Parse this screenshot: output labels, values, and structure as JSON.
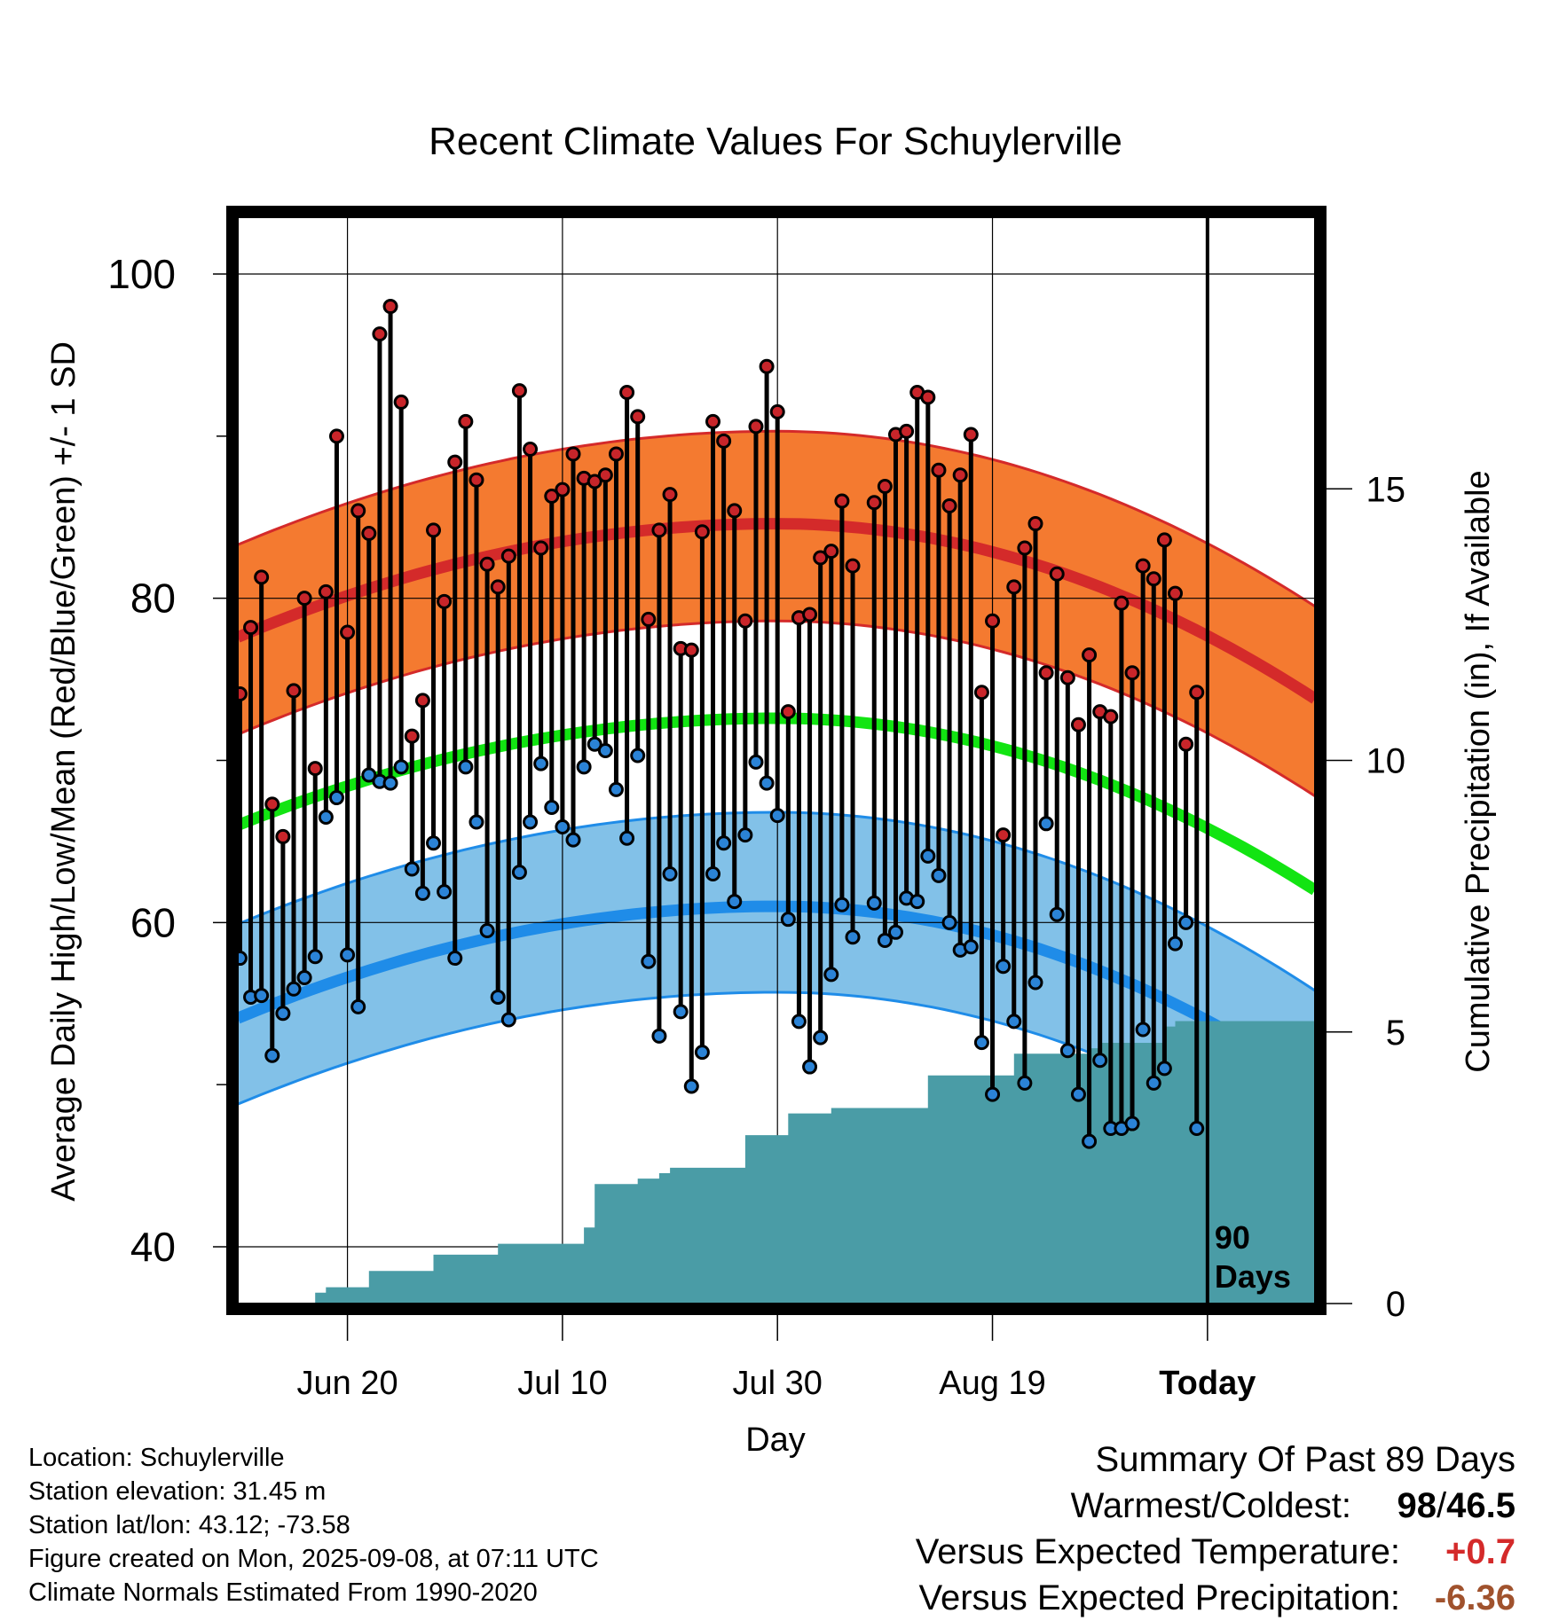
{
  "chart_data": {
    "type": "line",
    "title": "Recent Climate Values For Schuylerville",
    "xlabel": "Day",
    "ylabel_left": "Average Daily High/Low/Mean (Red/Blue/Green) +/- 1 SD",
    "ylabel_right": "Cumulative Precipitation (in), If Available",
    "ylim": [
      36.5,
      103.5
    ],
    "yticks": [
      40,
      60,
      80,
      100
    ],
    "y2lim": [
      0,
      20.0
    ],
    "y2ticks": [
      0,
      5,
      10,
      15
    ],
    "xlim_day_index": [
      -0.2,
      100
    ],
    "xticks": [
      {
        "day": 10,
        "label": "Jun 20"
      },
      {
        "day": 30,
        "label": "Jul 10"
      },
      {
        "day": 50,
        "label": "Jul 30"
      },
      {
        "day": 70,
        "label": "Aug 19"
      },
      {
        "day": 90,
        "label": "Today"
      }
    ],
    "today_label": "90 Days",
    "colors": {
      "high_band": "#f47a30",
      "high_band_edge": "#d42a2a",
      "high_mean": "#d42a2a",
      "low_band": "#82c1e8",
      "low_band_edge": "#1f8ce8",
      "low_mean": "#1f8ce8",
      "mean": "#12e412",
      "precip": "#4a9ca6",
      "high_dot": "#c8252a",
      "low_dot": "#2b83d6"
    },
    "normal_high": {
      "base": 84.6,
      "start": 77.6,
      "end": 73.8,
      "upper_offset": 5.7,
      "lower_offset": 6.0
    },
    "normal_low": {
      "base": 61.0,
      "start": 54.1,
      "end": 50.0,
      "upper_offset": 5.8,
      "lower_offset": 5.3
    },
    "normal_mean": {
      "base": 72.6,
      "start": 66.0,
      "end": 62.0
    },
    "daily_high": [
      74.1,
      78.2,
      81.3,
      67.3,
      65.3,
      74.3,
      80.0,
      69.5,
      80.4,
      90.0,
      77.9,
      85.4,
      84.0,
      96.3,
      98.0,
      92.1,
      71.5,
      73.7,
      84.2,
      79.8,
      88.4,
      90.9,
      87.3,
      82.1,
      80.7,
      82.6,
      92.8,
      89.2,
      83.1,
      86.3,
      86.7,
      88.9,
      87.4,
      87.2,
      87.6,
      88.9,
      92.7,
      91.2,
      78.7,
      84.2,
      86.4,
      76.9,
      76.8,
      84.1,
      90.9,
      89.7,
      85.4,
      78.6,
      90.6,
      94.3,
      91.5,
      73.0,
      78.8,
      79.0,
      82.5,
      82.9,
      86.0,
      82.0,
      null,
      85.9,
      86.9,
      90.1,
      90.3,
      92.7,
      92.4,
      87.9,
      85.7,
      87.6,
      90.1,
      74.2,
      78.6,
      65.4,
      80.7,
      83.1,
      84.6,
      75.4,
      81.5,
      75.1,
      72.2,
      76.5,
      73.0,
      72.7,
      79.7,
      75.4,
      82.0,
      81.2,
      83.6,
      80.3,
      71.0,
      74.2
    ],
    "daily_low": [
      57.8,
      55.4,
      55.5,
      51.8,
      54.4,
      55.9,
      56.6,
      57.9,
      66.5,
      67.7,
      58.0,
      54.8,
      69.1,
      68.7,
      68.6,
      69.6,
      63.3,
      61.8,
      64.9,
      61.9,
      57.8,
      69.6,
      66.2,
      59.5,
      55.4,
      54.0,
      63.1,
      66.2,
      69.8,
      67.1,
      65.9,
      65.1,
      69.6,
      71.0,
      70.6,
      68.2,
      65.2,
      70.3,
      57.6,
      53.0,
      63.0,
      54.5,
      49.9,
      52.0,
      63.0,
      64.9,
      61.3,
      65.4,
      69.9,
      68.6,
      66.6,
      60.2,
      53.9,
      51.1,
      52.9,
      56.8,
      61.1,
      59.1,
      null,
      61.2,
      58.9,
      59.4,
      61.5,
      61.3,
      64.1,
      62.9,
      60.0,
      58.3,
      58.5,
      52.6,
      49.4,
      57.3,
      53.9,
      50.1,
      56.3,
      66.1,
      60.5,
      52.1,
      49.4,
      46.5,
      51.5,
      47.3,
      47.3,
      47.6,
      53.4,
      50.1,
      51.0,
      58.7,
      60.0,
      47.3
    ],
    "precip_steps": [
      [
        0,
        0
      ],
      [
        6,
        0
      ],
      [
        7,
        0.2
      ],
      [
        8,
        0.3
      ],
      [
        11,
        0.3
      ],
      [
        12,
        0.6
      ],
      [
        17,
        0.6
      ],
      [
        18,
        0.9
      ],
      [
        23,
        0.9
      ],
      [
        24,
        1.1
      ],
      [
        30,
        1.1
      ],
      [
        32,
        1.4
      ],
      [
        33,
        2.2
      ],
      [
        36,
        2.2
      ],
      [
        37,
        2.3
      ],
      [
        39,
        2.4
      ],
      [
        40,
        2.5
      ],
      [
        46,
        2.5
      ],
      [
        47,
        3.1
      ],
      [
        50,
        3.1
      ],
      [
        51,
        3.5
      ],
      [
        54,
        3.5
      ],
      [
        55,
        3.6
      ],
      [
        63,
        3.6
      ],
      [
        64,
        4.2
      ],
      [
        71,
        4.2
      ],
      [
        72,
        4.6
      ],
      [
        78,
        4.6
      ],
      [
        79,
        4.7
      ],
      [
        80,
        4.8
      ],
      [
        85,
        4.8
      ],
      [
        86,
        5.1
      ],
      [
        87,
        5.2
      ],
      [
        100,
        5.2
      ]
    ]
  },
  "location": "Location: Schuylerville",
  "elevation": "Station elevation: 31.45 m",
  "latlon": "Station lat/lon: 43.12; -73.58",
  "created": "Figure created on Mon, 2025-09-08, at 07:11 UTC",
  "normals": "Climate Normals Estimated From 1990-2020",
  "summary": {
    "title": "Summary Of Past 89 Days",
    "warmest_label": "Warmest/Coldest:",
    "warmest_hi": "98",
    "warmest_sep": "/",
    "warmest_lo": "46.5",
    "temp_label": "Versus Expected Temperature:",
    "temp_value": "+0.7",
    "temp_color": "#d42a2a",
    "precip_label": "Versus Expected Precipitation:",
    "precip_value": "-6.36",
    "precip_color": "#a0522d"
  }
}
